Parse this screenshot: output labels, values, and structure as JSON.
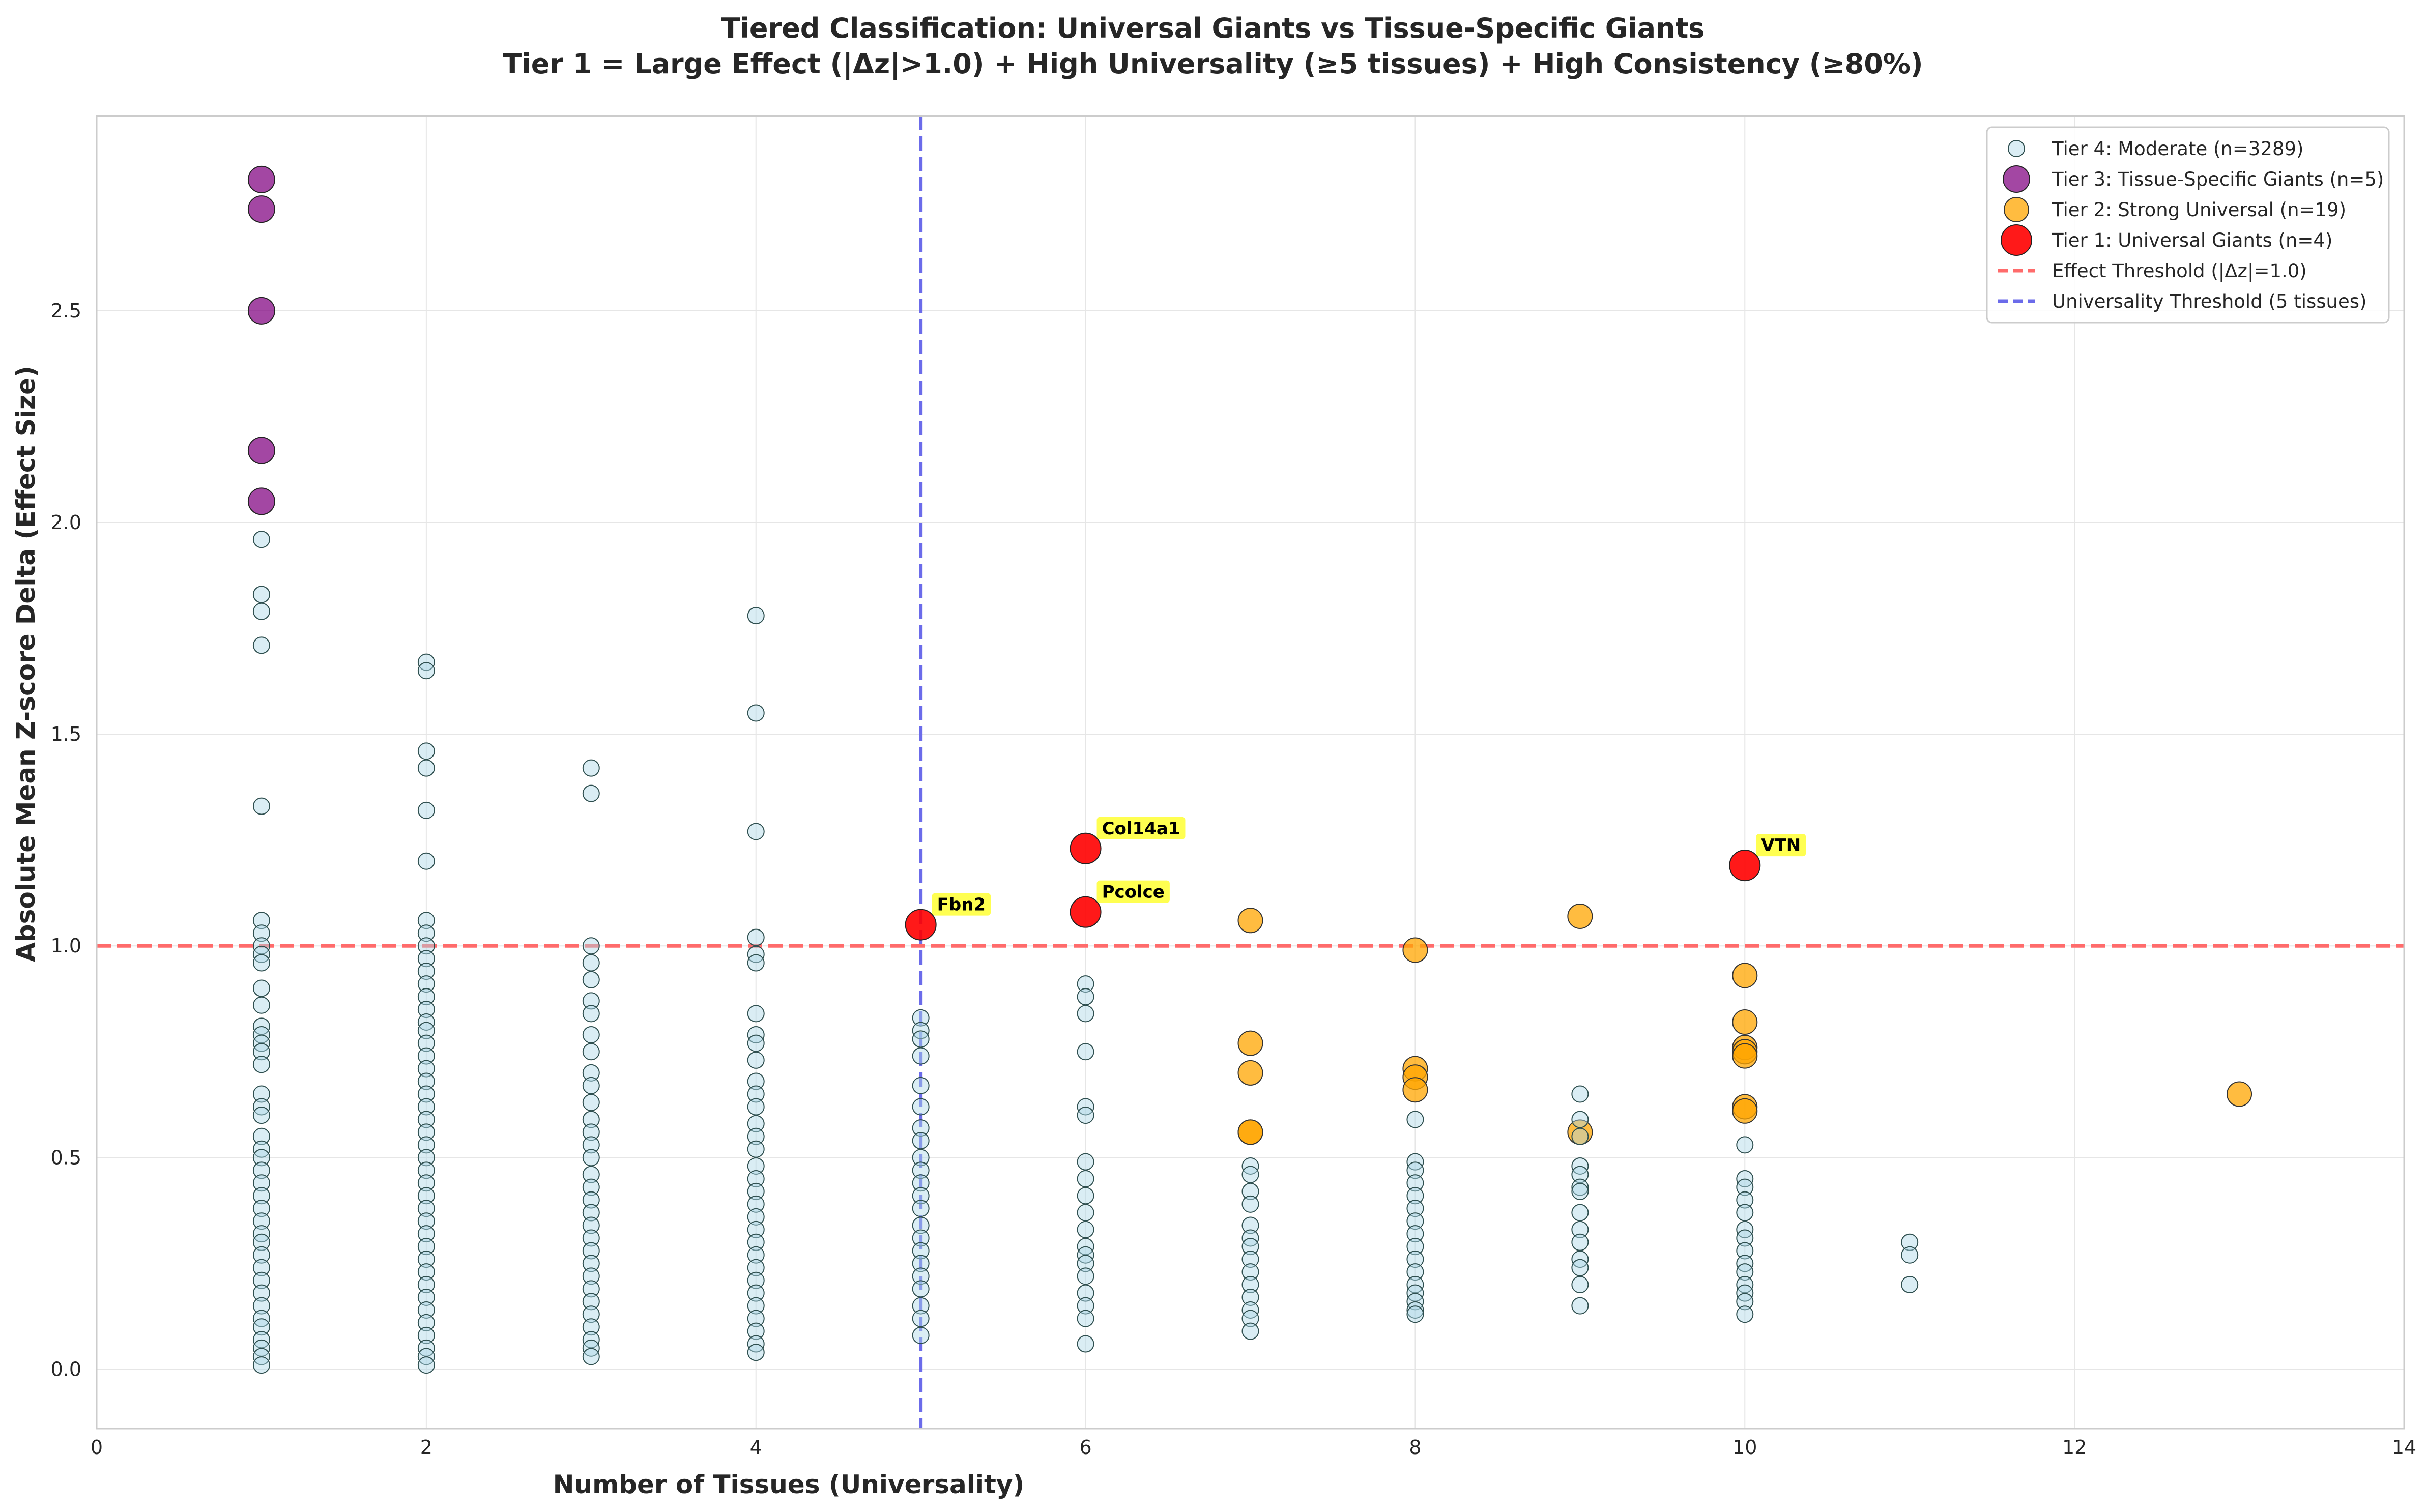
{
  "chart_data": {
    "type": "scatter",
    "title": "Tiered Classification: Universal Giants vs Tissue-Specific Giants",
    "subtitle": "Tier 1 = Large Effect (|Δz|>1.0) + High Universality (≥5 tissues) + High Consistency (≥80%)",
    "xlabel": "Number of Tissues (Universality)",
    "ylabel": "Absolute Mean Z-score Delta (Effect Size)",
    "xlim": [
      0,
      14
    ],
    "ylim": [
      -0.14,
      2.96
    ],
    "xticks": [
      0,
      2,
      4,
      6,
      8,
      10,
      12,
      14
    ],
    "xtick_labels": [
      "0",
      "2",
      "4",
      "6",
      "8",
      "10",
      "12",
      "14"
    ],
    "yticks": [
      0.0,
      0.5,
      1.0,
      1.5,
      2.0,
      2.5
    ],
    "ytick_labels": [
      "0.0",
      "0.5",
      "1.0",
      "1.5",
      "2.0",
      "2.5"
    ],
    "grid": true,
    "legend_position": "top-right",
    "colors": {
      "tier4_fill": "#add8e6",
      "tier3_fill": "#800080",
      "tier2_fill": "#ffa500",
      "tier1_fill": "#ff0000",
      "effect_line": "#ff6b6b",
      "universality_line": "#6b6bea",
      "annotation_bg": "#ffff33"
    },
    "thresholds": {
      "effect": {
        "y": 1.0,
        "label": "Effect Threshold (|Δz|=1.0)"
      },
      "universality": {
        "x": 5,
        "label": "Universality Threshold (5 tissues)"
      }
    },
    "series": [
      {
        "name": "Tier 4: Moderate (n=3289)",
        "tier": 4,
        "points": [
          [
            1,
            1.96
          ],
          [
            1,
            1.83
          ],
          [
            1,
            1.79
          ],
          [
            1,
            1.71
          ],
          [
            1,
            1.33
          ],
          [
            1,
            1.06
          ],
          [
            1,
            1.03
          ],
          [
            1,
            1.0
          ],
          [
            1,
            0.98
          ],
          [
            1,
            0.96
          ],
          [
            1,
            0.9
          ],
          [
            1,
            0.86
          ],
          [
            1,
            0.81
          ],
          [
            1,
            0.79
          ],
          [
            1,
            0.77
          ],
          [
            1,
            0.75
          ],
          [
            1,
            0.72
          ],
          [
            1,
            0.65
          ],
          [
            1,
            0.62
          ],
          [
            1,
            0.6
          ],
          [
            1,
            0.55
          ],
          [
            1,
            0.52
          ],
          [
            1,
            0.5
          ],
          [
            1,
            0.47
          ],
          [
            1,
            0.44
          ],
          [
            1,
            0.41
          ],
          [
            1,
            0.38
          ],
          [
            1,
            0.35
          ],
          [
            1,
            0.32
          ],
          [
            1,
            0.3
          ],
          [
            1,
            0.27
          ],
          [
            1,
            0.24
          ],
          [
            1,
            0.21
          ],
          [
            1,
            0.18
          ],
          [
            1,
            0.15
          ],
          [
            1,
            0.12
          ],
          [
            1,
            0.1
          ],
          [
            1,
            0.07
          ],
          [
            1,
            0.05
          ],
          [
            1,
            0.03
          ],
          [
            1,
            0.01
          ],
          [
            2,
            1.67
          ],
          [
            2,
            1.65
          ],
          [
            2,
            1.46
          ],
          [
            2,
            1.42
          ],
          [
            2,
            1.32
          ],
          [
            2,
            1.2
          ],
          [
            2,
            1.06
          ],
          [
            2,
            1.03
          ],
          [
            2,
            1.0
          ],
          [
            2,
            0.97
          ],
          [
            2,
            0.94
          ],
          [
            2,
            0.91
          ],
          [
            2,
            0.88
          ],
          [
            2,
            0.85
          ],
          [
            2,
            0.82
          ],
          [
            2,
            0.8
          ],
          [
            2,
            0.77
          ],
          [
            2,
            0.74
          ],
          [
            2,
            0.71
          ],
          [
            2,
            0.68
          ],
          [
            2,
            0.65
          ],
          [
            2,
            0.62
          ],
          [
            2,
            0.59
          ],
          [
            2,
            0.56
          ],
          [
            2,
            0.53
          ],
          [
            2,
            0.5
          ],
          [
            2,
            0.47
          ],
          [
            2,
            0.44
          ],
          [
            2,
            0.41
          ],
          [
            2,
            0.38
          ],
          [
            2,
            0.35
          ],
          [
            2,
            0.32
          ],
          [
            2,
            0.29
          ],
          [
            2,
            0.26
          ],
          [
            2,
            0.23
          ],
          [
            2,
            0.2
          ],
          [
            2,
            0.17
          ],
          [
            2,
            0.14
          ],
          [
            2,
            0.11
          ],
          [
            2,
            0.08
          ],
          [
            2,
            0.05
          ],
          [
            2,
            0.03
          ],
          [
            2,
            0.01
          ],
          [
            3,
            1.42
          ],
          [
            3,
            1.36
          ],
          [
            3,
            1.0
          ],
          [
            3,
            0.96
          ],
          [
            3,
            0.92
          ],
          [
            3,
            0.87
          ],
          [
            3,
            0.84
          ],
          [
            3,
            0.79
          ],
          [
            3,
            0.75
          ],
          [
            3,
            0.7
          ],
          [
            3,
            0.67
          ],
          [
            3,
            0.63
          ],
          [
            3,
            0.59
          ],
          [
            3,
            0.56
          ],
          [
            3,
            0.53
          ],
          [
            3,
            0.5
          ],
          [
            3,
            0.46
          ],
          [
            3,
            0.43
          ],
          [
            3,
            0.4
          ],
          [
            3,
            0.37
          ],
          [
            3,
            0.34
          ],
          [
            3,
            0.31
          ],
          [
            3,
            0.28
          ],
          [
            3,
            0.25
          ],
          [
            3,
            0.22
          ],
          [
            3,
            0.19
          ],
          [
            3,
            0.16
          ],
          [
            3,
            0.13
          ],
          [
            3,
            0.1
          ],
          [
            3,
            0.07
          ],
          [
            3,
            0.05
          ],
          [
            3,
            0.03
          ],
          [
            4,
            1.78
          ],
          [
            4,
            1.55
          ],
          [
            4,
            1.27
          ],
          [
            4,
            1.02
          ],
          [
            4,
            0.98
          ],
          [
            4,
            0.96
          ],
          [
            4,
            0.84
          ],
          [
            4,
            0.79
          ],
          [
            4,
            0.77
          ],
          [
            4,
            0.73
          ],
          [
            4,
            0.68
          ],
          [
            4,
            0.65
          ],
          [
            4,
            0.62
          ],
          [
            4,
            0.58
          ],
          [
            4,
            0.55
          ],
          [
            4,
            0.52
          ],
          [
            4,
            0.48
          ],
          [
            4,
            0.45
          ],
          [
            4,
            0.42
          ],
          [
            4,
            0.39
          ],
          [
            4,
            0.36
          ],
          [
            4,
            0.33
          ],
          [
            4,
            0.3
          ],
          [
            4,
            0.27
          ],
          [
            4,
            0.24
          ],
          [
            4,
            0.21
          ],
          [
            4,
            0.18
          ],
          [
            4,
            0.15
          ],
          [
            4,
            0.12
          ],
          [
            4,
            0.09
          ],
          [
            4,
            0.06
          ],
          [
            4,
            0.04
          ],
          [
            5,
            0.83
          ],
          [
            5,
            0.8
          ],
          [
            5,
            0.78
          ],
          [
            5,
            0.74
          ],
          [
            5,
            0.67
          ],
          [
            5,
            0.62
          ],
          [
            5,
            0.57
          ],
          [
            5,
            0.54
          ],
          [
            5,
            0.5
          ],
          [
            5,
            0.47
          ],
          [
            5,
            0.44
          ],
          [
            5,
            0.41
          ],
          [
            5,
            0.38
          ],
          [
            5,
            0.34
          ],
          [
            5,
            0.31
          ],
          [
            5,
            0.28
          ],
          [
            5,
            0.25
          ],
          [
            5,
            0.22
          ],
          [
            5,
            0.19
          ],
          [
            5,
            0.15
          ],
          [
            5,
            0.12
          ],
          [
            5,
            0.08
          ],
          [
            6,
            0.91
          ],
          [
            6,
            0.88
          ],
          [
            6,
            0.84
          ],
          [
            6,
            0.75
          ],
          [
            6,
            0.62
          ],
          [
            6,
            0.6
          ],
          [
            6,
            0.49
          ],
          [
            6,
            0.45
          ],
          [
            6,
            0.41
          ],
          [
            6,
            0.37
          ],
          [
            6,
            0.33
          ],
          [
            6,
            0.29
          ],
          [
            6,
            0.27
          ],
          [
            6,
            0.25
          ],
          [
            6,
            0.22
          ],
          [
            6,
            0.18
          ],
          [
            6,
            0.15
          ],
          [
            6,
            0.12
          ],
          [
            6,
            0.06
          ],
          [
            7,
            0.48
          ],
          [
            7,
            0.46
          ],
          [
            7,
            0.42
          ],
          [
            7,
            0.39
          ],
          [
            7,
            0.34
          ],
          [
            7,
            0.31
          ],
          [
            7,
            0.29
          ],
          [
            7,
            0.26
          ],
          [
            7,
            0.23
          ],
          [
            7,
            0.2
          ],
          [
            7,
            0.17
          ],
          [
            7,
            0.14
          ],
          [
            7,
            0.12
          ],
          [
            7,
            0.09
          ],
          [
            8,
            0.59
          ],
          [
            8,
            0.49
          ],
          [
            8,
            0.47
          ],
          [
            8,
            0.44
          ],
          [
            8,
            0.41
          ],
          [
            8,
            0.38
          ],
          [
            8,
            0.35
          ],
          [
            8,
            0.32
          ],
          [
            8,
            0.29
          ],
          [
            8,
            0.26
          ],
          [
            8,
            0.23
          ],
          [
            8,
            0.2
          ],
          [
            8,
            0.18
          ],
          [
            8,
            0.16
          ],
          [
            8,
            0.14
          ],
          [
            8,
            0.13
          ],
          [
            9,
            0.65
          ],
          [
            9,
            0.59
          ],
          [
            9,
            0.55
          ],
          [
            9,
            0.48
          ],
          [
            9,
            0.46
          ],
          [
            9,
            0.43
          ],
          [
            9,
            0.42
          ],
          [
            9,
            0.37
          ],
          [
            9,
            0.33
          ],
          [
            9,
            0.3
          ],
          [
            9,
            0.26
          ],
          [
            9,
            0.24
          ],
          [
            9,
            0.2
          ],
          [
            9,
            0.15
          ],
          [
            10,
            0.53
          ],
          [
            10,
            0.45
          ],
          [
            10,
            0.43
          ],
          [
            10,
            0.4
          ],
          [
            10,
            0.37
          ],
          [
            10,
            0.33
          ],
          [
            10,
            0.31
          ],
          [
            10,
            0.28
          ],
          [
            10,
            0.25
          ],
          [
            10,
            0.23
          ],
          [
            10,
            0.2
          ],
          [
            10,
            0.18
          ],
          [
            10,
            0.16
          ],
          [
            10,
            0.13
          ],
          [
            11,
            0.3
          ],
          [
            11,
            0.27
          ],
          [
            11,
            0.2
          ]
        ]
      },
      {
        "name": "Tier 3: Tissue-Specific Giants (n=5)",
        "tier": 3,
        "points": [
          [
            1,
            2.81
          ],
          [
            1,
            2.74
          ],
          [
            1,
            2.5
          ],
          [
            1,
            2.17
          ],
          [
            1,
            2.05
          ]
        ]
      },
      {
        "name": "Tier 2: Strong Universal (n=19)",
        "tier": 2,
        "points": [
          [
            7,
            1.06
          ],
          [
            7,
            0.77
          ],
          [
            7,
            0.7
          ],
          [
            7,
            0.56
          ],
          [
            7,
            0.56
          ],
          [
            8,
            0.99
          ],
          [
            8,
            0.71
          ],
          [
            8,
            0.69
          ],
          [
            8,
            0.66
          ],
          [
            9,
            1.07
          ],
          [
            9,
            0.56
          ],
          [
            10,
            0.93
          ],
          [
            10,
            0.82
          ],
          [
            10,
            0.76
          ],
          [
            10,
            0.75
          ],
          [
            10,
            0.62
          ],
          [
            10,
            0.61
          ],
          [
            13,
            0.65
          ],
          [
            10,
            0.74
          ]
        ]
      },
      {
        "name": "Tier 1: Universal Giants (n=4)",
        "tier": 1,
        "points": [
          [
            5,
            1.05
          ],
          [
            6,
            1.23
          ],
          [
            6,
            1.08
          ],
          [
            10,
            1.19
          ]
        ]
      }
    ],
    "annotations": [
      {
        "text": "Fbn2",
        "x": 5,
        "y": 1.05
      },
      {
        "text": "Col14a1",
        "x": 6,
        "y": 1.23
      },
      {
        "text": "Pcolce",
        "x": 6,
        "y": 1.08
      },
      {
        "text": "VTN",
        "x": 10,
        "y": 1.19
      }
    ]
  }
}
